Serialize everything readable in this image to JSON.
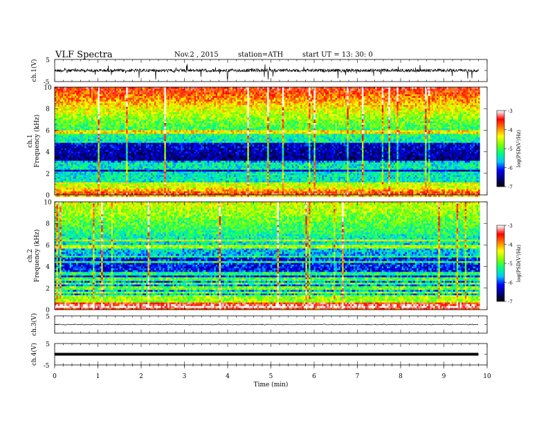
{
  "header": {
    "title": "VLF  Spectra",
    "date": "Nov.2  , 2015",
    "station": "station=ATH",
    "start": "start  UT  =    13: 30: 0"
  },
  "chart_data": [
    {
      "type": "line",
      "panel": "ch1-waveform",
      "ylabel": "ch.1(V)",
      "ylim": [
        -5,
        5
      ],
      "y_tick_labels": [
        "5",
        "-5"
      ],
      "x_range_min": [
        0,
        9.8
      ],
      "baseline_value": 0,
      "trace_color": "#000000",
      "note_shape": "noisy broadband impulsive trace"
    },
    {
      "type": "heatmap",
      "panel": "ch1-spectrogram",
      "ylabel": "ch.1\nFrequency (kHz)",
      "ylim": [
        0,
        10
      ],
      "y_ticks": [
        0,
        2,
        4,
        6,
        8,
        10
      ],
      "x_range_min": [
        0,
        9.8
      ],
      "colorbar": {
        "label": "log(PSD(V²/Hz)",
        "range": [
          -7,
          -3
        ],
        "ticks": [
          -3,
          -4,
          -5,
          -6,
          -7
        ]
      },
      "bands_khz": [
        0.2,
        0.4,
        0.6,
        0.8,
        1.0,
        1.2,
        1.5,
        1.8,
        2.1,
        2.4,
        2.7,
        3.0,
        4.9,
        5.8
      ]
    },
    {
      "type": "heatmap",
      "panel": "ch2-spectrogram",
      "ylabel": "ch.2\nFrequency (kHz)",
      "ylim": [
        0,
        10
      ],
      "y_ticks": [
        0,
        2,
        4,
        6,
        8,
        10
      ],
      "x_range_min": [
        0,
        9.8
      ],
      "colorbar": {
        "label": "log(PSD(V²/Hz)",
        "range": [
          -7,
          -3
        ],
        "ticks": [
          -3,
          -4,
          -5,
          -6,
          -7
        ]
      },
      "bands_khz": [
        0.3,
        0.6,
        0.9,
        1.2,
        1.6,
        2.0,
        2.4,
        2.8,
        3.3,
        4.4,
        4.9,
        5.8,
        6.4
      ]
    },
    {
      "type": "line",
      "panel": "ch3-waveform",
      "ylabel": "ch.3(V)",
      "ylim": [
        -5,
        5
      ],
      "y_tick_labels": [
        "5"
      ],
      "x_range_min": [
        0,
        9.8
      ],
      "baseline_value": 0,
      "trace_color": "#000000"
    },
    {
      "type": "line",
      "panel": "ch4-waveform",
      "ylabel": "ch.4(V)",
      "ylim": [
        -5,
        5
      ],
      "y_tick_labels": [
        "5",
        "-5"
      ],
      "x_range_min": [
        0,
        9.8
      ],
      "baseline_value": 0,
      "trace_color": "#000000",
      "thick": true
    }
  ],
  "xaxis": {
    "label": "Time  (min)",
    "ticks": [
      0,
      1,
      2,
      3,
      4,
      5,
      6,
      7,
      8,
      9,
      10
    ],
    "range": [
      0,
      10
    ]
  },
  "colors": {
    "colormap": [
      "#000000",
      "#000080",
      "#0000ff",
      "#00c8ff",
      "#00ff80",
      "#80ff00",
      "#ffff00",
      "#ff8000",
      "#ff0000",
      "#ffffff"
    ]
  }
}
